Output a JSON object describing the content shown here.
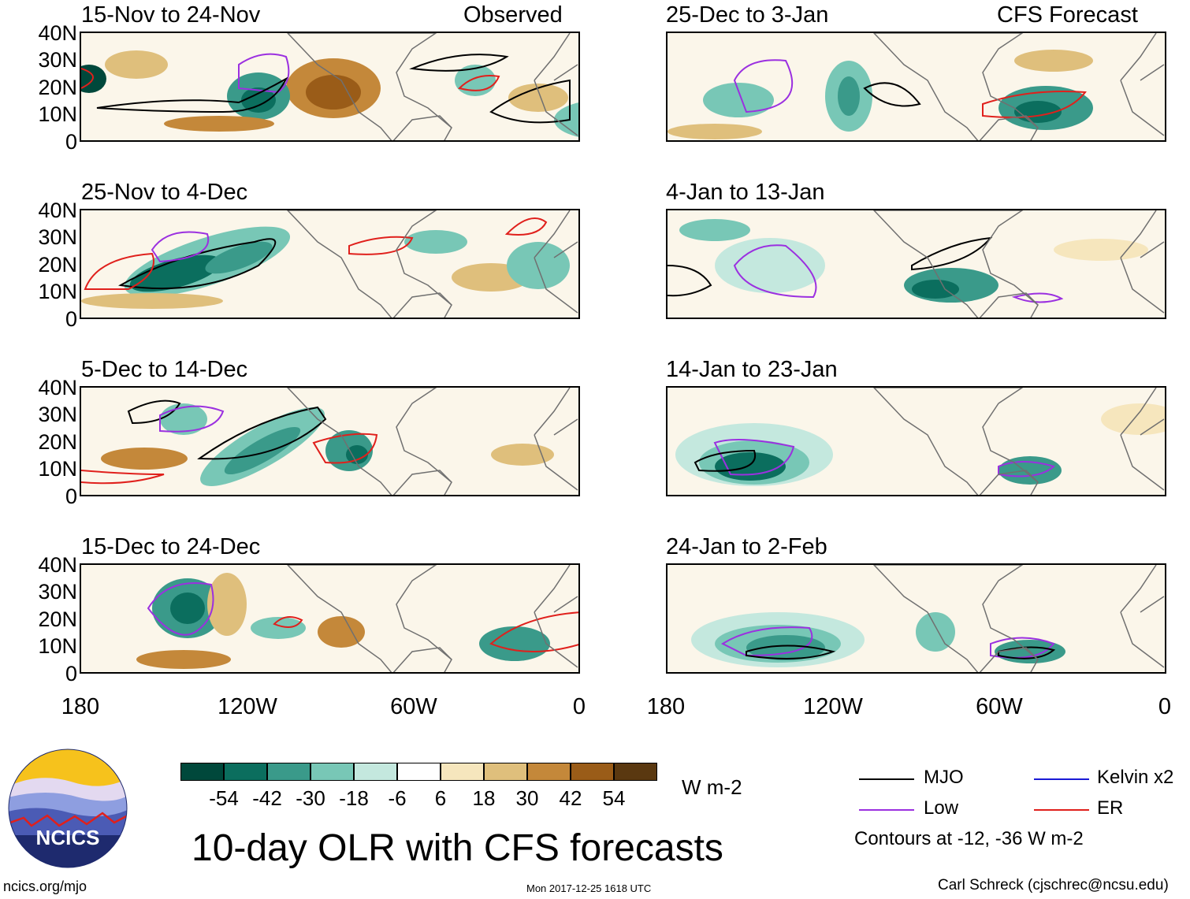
{
  "figure": {
    "title": "10-day OLR with CFS forecasts",
    "units": "W m-2",
    "timestamp": "Mon 2017-12-25 1618 UTC",
    "website": "ncics.org/mjo",
    "author": "Carl Schreck (cjschrec@ncsu.edu)",
    "logo_text": "NCICS"
  },
  "columns": {
    "left_label": "Observed",
    "right_label": "CFS Forecast"
  },
  "panels_left": [
    {
      "title": "15-Nov to 24-Nov"
    },
    {
      "title": "25-Nov to 4-Dec"
    },
    {
      "title": "5-Dec to 14-Dec"
    },
    {
      "title": "15-Dec to 24-Dec"
    }
  ],
  "panels_right": [
    {
      "title": "25-Dec to 3-Jan"
    },
    {
      "title": "4-Jan to 13-Jan"
    },
    {
      "title": "14-Jan to 23-Jan"
    },
    {
      "title": "24-Jan to 2-Feb"
    }
  ],
  "axes": {
    "lat_ticks": [
      "40N",
      "30N",
      "20N",
      "10N",
      "0"
    ],
    "lon_ticks": [
      "180",
      "120W",
      "60W",
      "0"
    ]
  },
  "colorbar": {
    "labels": [
      "-54",
      "-42",
      "-30",
      "-18",
      "-6",
      "6",
      "18",
      "30",
      "42",
      "54"
    ],
    "colors": [
      "#00483b",
      "#0b6e5e",
      "#3a9a8a",
      "#78c7b6",
      "#c4e8de",
      "#ffffff",
      "#f6e6bd",
      "#dfbf7c",
      "#c4883a",
      "#9a5c18",
      "#5a3810"
    ]
  },
  "legend": {
    "items": [
      {
        "label": "MJO",
        "color": "#000000"
      },
      {
        "label": "Kelvin x2",
        "color": "#1a1ad6"
      },
      {
        "label": "Low",
        "color": "#9b30e0"
      },
      {
        "label": "ER",
        "color": "#e0201c"
      }
    ],
    "note": "Contours at -12, -36 W m-2"
  }
}
